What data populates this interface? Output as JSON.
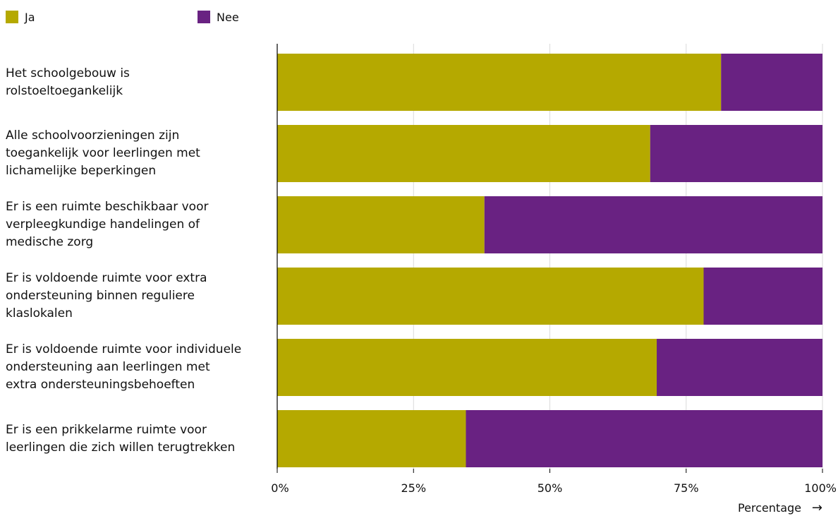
{
  "colors": {
    "ja": "#b5a900",
    "nee": "#692282",
    "grid": "#d9d9d9",
    "axis": "#000000"
  },
  "legend": {
    "ja_label": "Ja",
    "nee_label": "Nee"
  },
  "chart_data": {
    "type": "bar",
    "orientation": "horizontal",
    "stacked": true,
    "categories": [
      "Het schoolgebouw is rolstoeltoegankelijk",
      "Alle schoolvoorzieningen zijn toegankelijk voor leerlingen met lichamelijke beperkingen",
      "Er is een ruimte beschikbaar voor verpleegkundige handelingen of medische zorg",
      "Er is voldoende ruimte voor extra ondersteuning binnen reguliere klaslokalen",
      "Er is voldoende ruimte voor individuele ondersteuning aan leerlingen met extra ondersteuningsbehoeften",
      "Er is een prikkelarme ruimte voor leerlingen die zich willen terugtrekken"
    ],
    "series": [
      {
        "name": "Ja",
        "values": [
          81.4,
          68.4,
          38.0,
          78.2,
          69.6,
          34.6
        ]
      },
      {
        "name": "Nee",
        "values": [
          18.6,
          31.6,
          62.0,
          21.8,
          30.4,
          65.4
        ]
      }
    ],
    "xlim": [
      0,
      100
    ],
    "xticks": [
      "0%",
      "25%",
      "50%",
      "75%",
      "100%"
    ],
    "xlabel": "Percentage",
    "ylabel": "",
    "title": "",
    "grid": true,
    "legend_position": "top-left"
  }
}
